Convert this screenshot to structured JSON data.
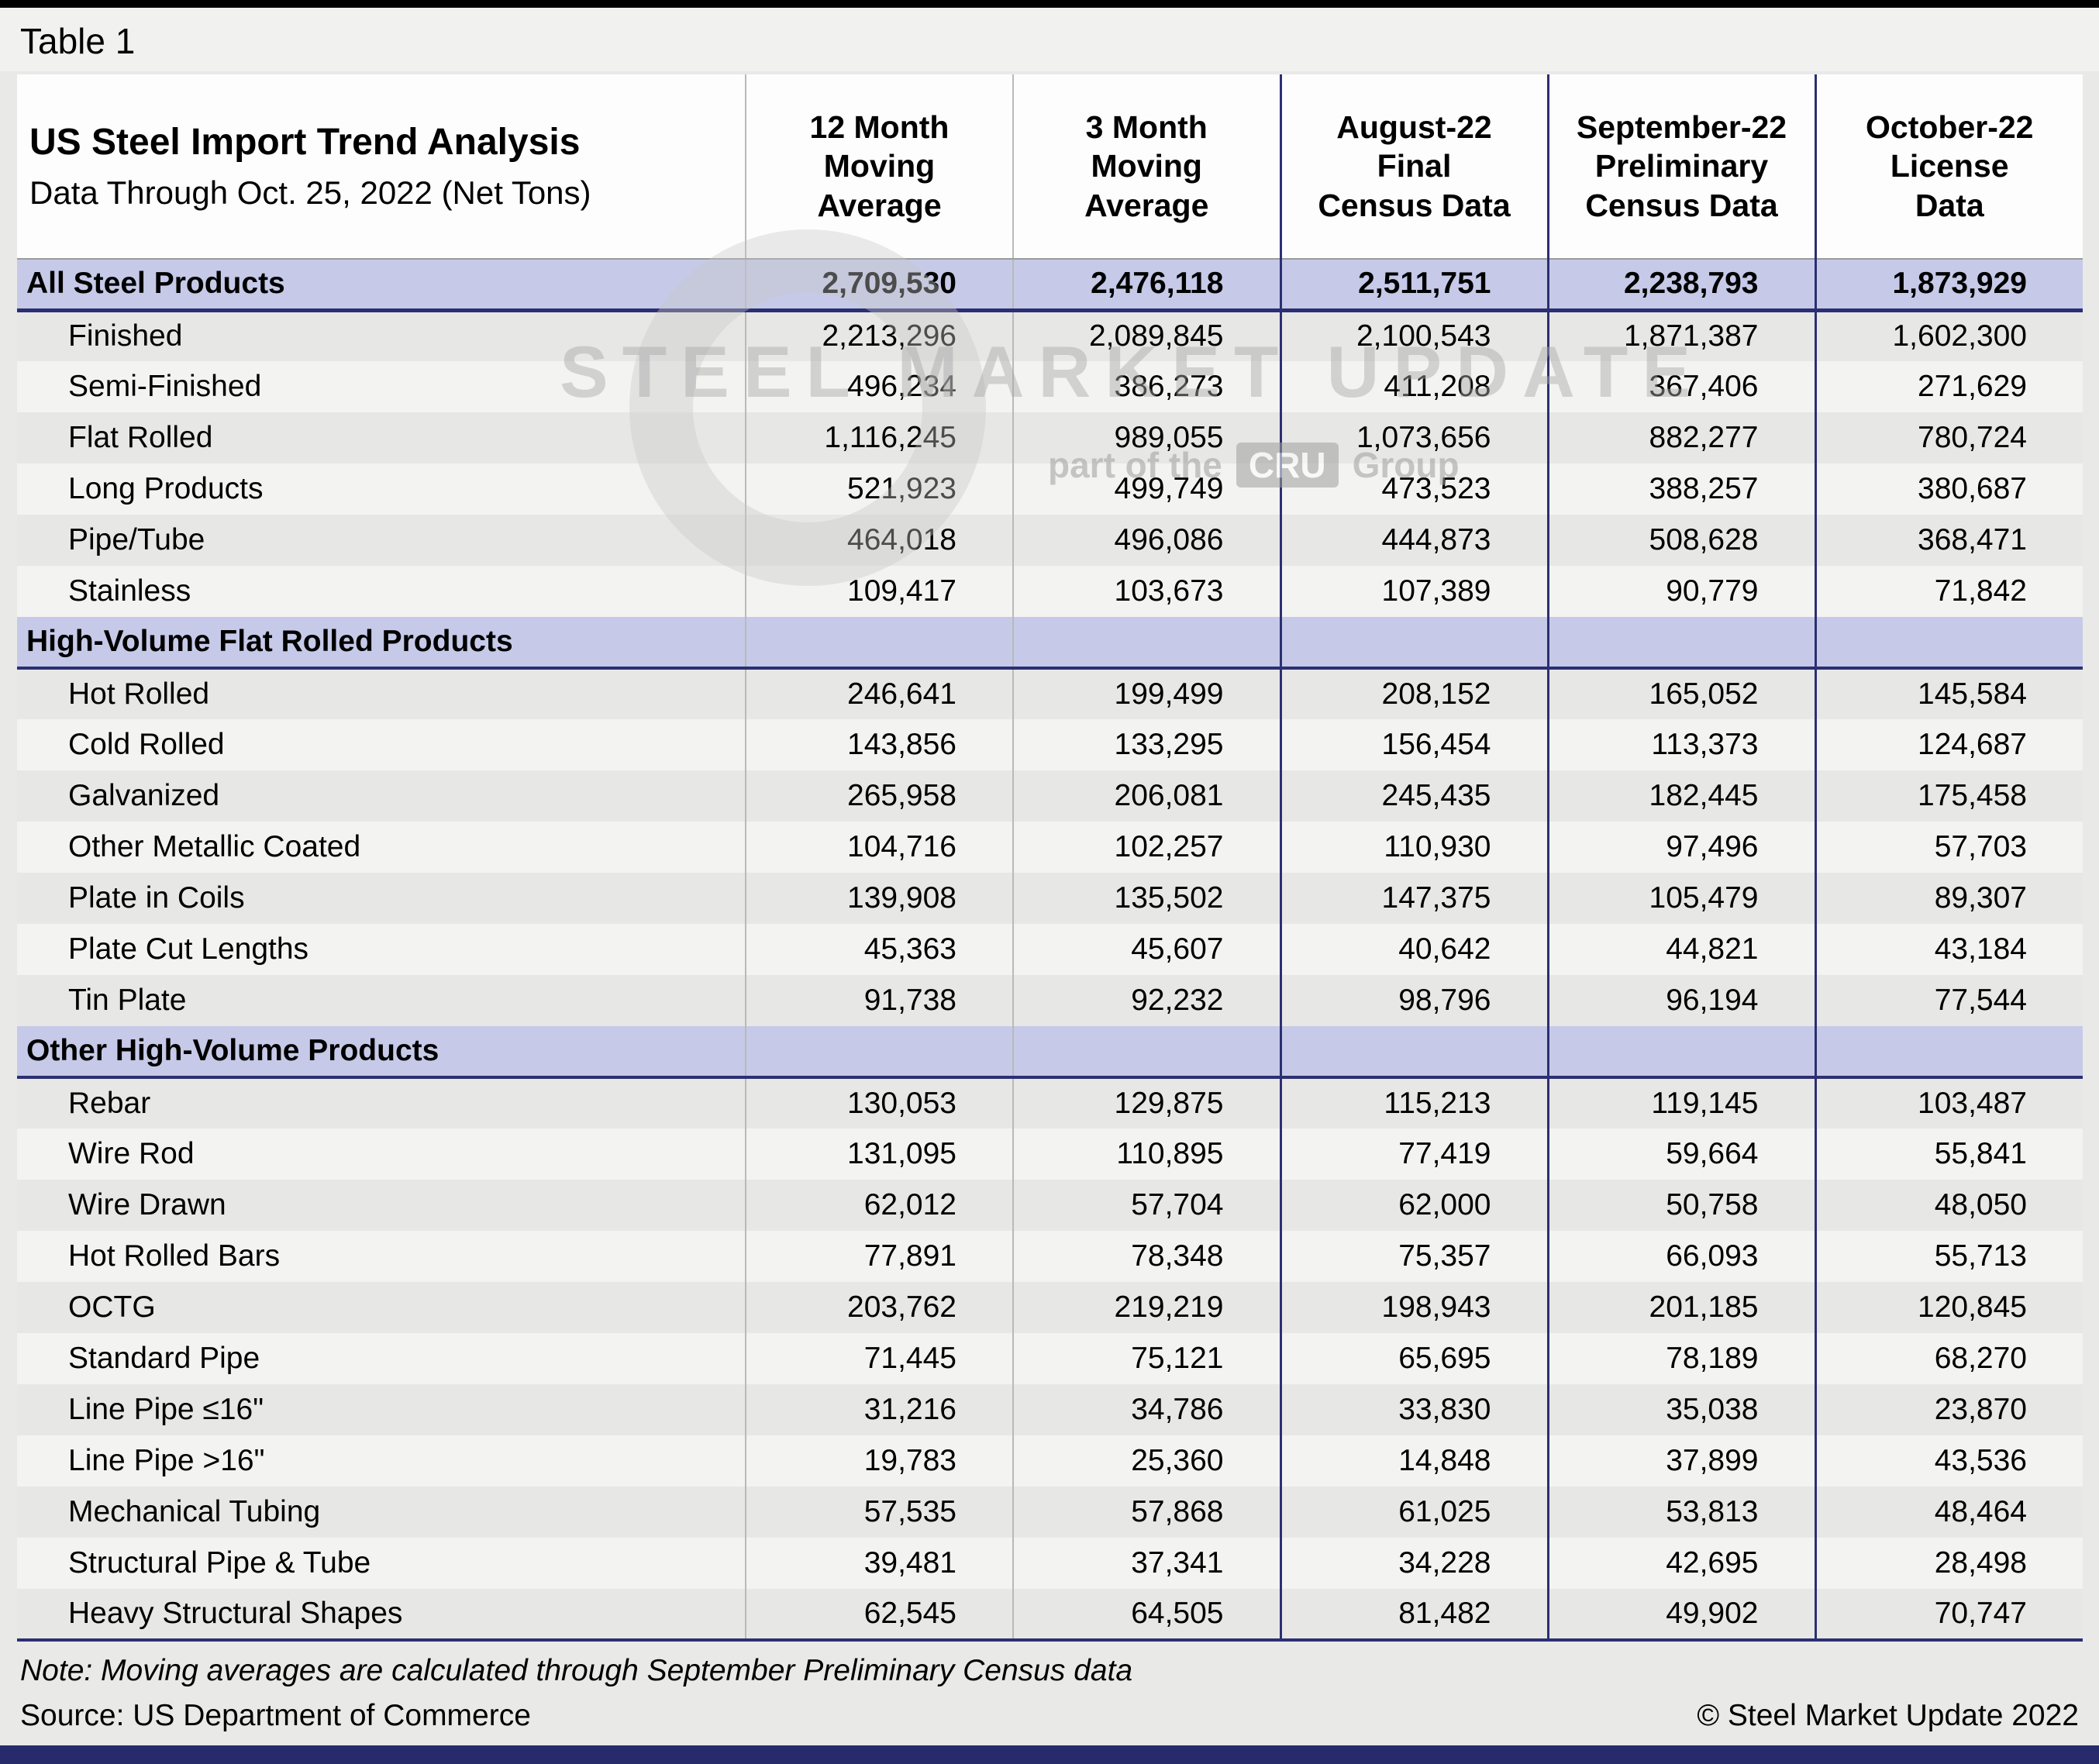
{
  "page": {
    "table_label": "Table 1",
    "title": "US Steel Import Trend Analysis",
    "subtitle": "Data Through Oct. 25, 2022 (Net Tons)",
    "note": "Note: Moving averages are calculated through September Preliminary Census data",
    "source": "Source: US Department of Commerce",
    "copyright": "© Steel Market Update 2022",
    "watermark": {
      "line1": "STEEL MARKET UPDATE",
      "part_of": "part of the",
      "cru": "CRU",
      "group": "Group"
    }
  },
  "colors": {
    "section_lavender": "#c6cae8",
    "navy_rule": "#2c2f72",
    "row_dark": "#e7e7e5",
    "row_light": "#f3f3f1",
    "bottom_bar": "#272b6b"
  },
  "chart_data": {
    "type": "table",
    "title": "US Steel Import Trend Analysis",
    "subtitle": "Data Through Oct. 25, 2022 (Net Tons)",
    "columns": [
      "12 Month\nMoving\nAverage",
      "3 Month\nMoving\nAverage",
      "August-22\nFinal\nCensus Data",
      "September-22\nPreliminary\nCensus Data",
      "October-22\nLicense\nData"
    ],
    "rows": [
      {
        "type": "total",
        "label": "All Steel Products",
        "values": [
          "2,709,530",
          "2,476,118",
          "2,511,751",
          "2,238,793",
          "1,873,929"
        ]
      },
      {
        "type": "data",
        "label": "Finished",
        "values": [
          "2,213,296",
          "2,089,845",
          "2,100,543",
          "1,871,387",
          "1,602,300"
        ]
      },
      {
        "type": "data",
        "label": "Semi-Finished",
        "values": [
          "496,234",
          "386,273",
          "411,208",
          "367,406",
          "271,629"
        ]
      },
      {
        "type": "data",
        "label": "Flat Rolled",
        "values": [
          "1,116,245",
          "989,055",
          "1,073,656",
          "882,277",
          "780,724"
        ]
      },
      {
        "type": "data",
        "label": "Long Products",
        "values": [
          "521,923",
          "499,749",
          "473,523",
          "388,257",
          "380,687"
        ]
      },
      {
        "type": "data",
        "label": "Pipe/Tube",
        "values": [
          "464,018",
          "496,086",
          "444,873",
          "508,628",
          "368,471"
        ]
      },
      {
        "type": "data",
        "label": "Stainless",
        "values": [
          "109,417",
          "103,673",
          "107,389",
          "90,779",
          "71,842"
        ]
      },
      {
        "type": "section",
        "label": "High-Volume Flat Rolled Products",
        "values": [
          "",
          "",
          "",
          "",
          ""
        ]
      },
      {
        "type": "data",
        "label": "Hot Rolled",
        "values": [
          "246,641",
          "199,499",
          "208,152",
          "165,052",
          "145,584"
        ]
      },
      {
        "type": "data",
        "label": "Cold Rolled",
        "values": [
          "143,856",
          "133,295",
          "156,454",
          "113,373",
          "124,687"
        ]
      },
      {
        "type": "data",
        "label": "Galvanized",
        "values": [
          "265,958",
          "206,081",
          "245,435",
          "182,445",
          "175,458"
        ]
      },
      {
        "type": "data",
        "label": "Other Metallic Coated",
        "values": [
          "104,716",
          "102,257",
          "110,930",
          "97,496",
          "57,703"
        ]
      },
      {
        "type": "data",
        "label": "Plate in Coils",
        "values": [
          "139,908",
          "135,502",
          "147,375",
          "105,479",
          "89,307"
        ]
      },
      {
        "type": "data",
        "label": "Plate Cut Lengths",
        "values": [
          "45,363",
          "45,607",
          "40,642",
          "44,821",
          "43,184"
        ]
      },
      {
        "type": "data",
        "label": "Tin Plate",
        "values": [
          "91,738",
          "92,232",
          "98,796",
          "96,194",
          "77,544"
        ]
      },
      {
        "type": "section",
        "label": "Other High-Volume Products",
        "values": [
          "",
          "",
          "",
          "",
          ""
        ]
      },
      {
        "type": "data",
        "label": "Rebar",
        "values": [
          "130,053",
          "129,875",
          "115,213",
          "119,145",
          "103,487"
        ]
      },
      {
        "type": "data",
        "label": "Wire Rod",
        "values": [
          "131,095",
          "110,895",
          "77,419",
          "59,664",
          "55,841"
        ]
      },
      {
        "type": "data",
        "label": "Wire Drawn",
        "values": [
          "62,012",
          "57,704",
          "62,000",
          "50,758",
          "48,050"
        ]
      },
      {
        "type": "data",
        "label": "Hot Rolled Bars",
        "values": [
          "77,891",
          "78,348",
          "75,357",
          "66,093",
          "55,713"
        ]
      },
      {
        "type": "data",
        "label": "OCTG",
        "values": [
          "203,762",
          "219,219",
          "198,943",
          "201,185",
          "120,845"
        ]
      },
      {
        "type": "data",
        "label": "Standard Pipe",
        "values": [
          "71,445",
          "75,121",
          "65,695",
          "78,189",
          "68,270"
        ]
      },
      {
        "type": "data",
        "label": "Line Pipe ≤16\"",
        "values": [
          "31,216",
          "34,786",
          "33,830",
          "35,038",
          "23,870"
        ]
      },
      {
        "type": "data",
        "label": "Line Pipe >16\"",
        "values": [
          "19,783",
          "25,360",
          "14,848",
          "37,899",
          "43,536"
        ]
      },
      {
        "type": "data",
        "label": "Mechanical Tubing",
        "values": [
          "57,535",
          "57,868",
          "61,025",
          "53,813",
          "48,464"
        ]
      },
      {
        "type": "data",
        "label": "Structural Pipe & Tube",
        "values": [
          "39,481",
          "37,341",
          "34,228",
          "42,695",
          "28,498"
        ]
      },
      {
        "type": "data",
        "label": "Heavy Structural Shapes",
        "values": [
          "62,545",
          "64,505",
          "81,482",
          "49,902",
          "70,747"
        ]
      }
    ]
  }
}
